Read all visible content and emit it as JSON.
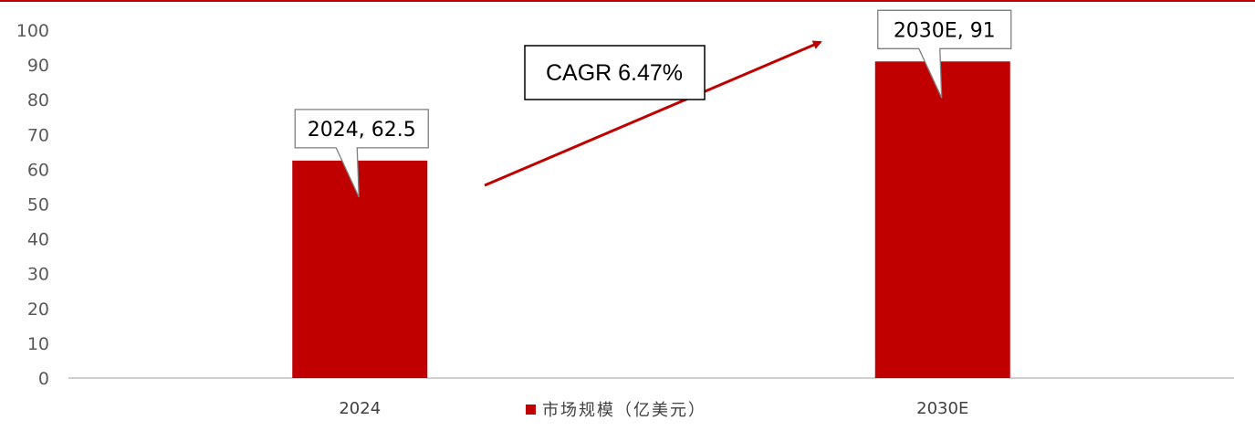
{
  "colors": {
    "bar": "#C00000",
    "top_rule": "#C00000",
    "axis": "#BFBFBF",
    "tick_text": "#595959",
    "callout_border": "#7F7F7F",
    "arrow": "#C00000"
  },
  "chart_data": {
    "type": "bar",
    "categories": [
      "2024",
      "2030E"
    ],
    "series": [
      {
        "name": "市场规模（亿美元）",
        "values": [
          62.5,
          91
        ]
      }
    ],
    "data_labels": [
      "2024, 62.5",
      "2030E, 91"
    ],
    "ylim": [
      0,
      100
    ],
    "yticks": [
      0,
      10,
      20,
      30,
      40,
      50,
      60,
      70,
      80,
      90,
      100
    ],
    "ytick_labels": [
      "0",
      "10",
      "20",
      "30",
      "40",
      "50",
      "60",
      "70",
      "80",
      "90",
      "100"
    ],
    "grid": false,
    "legend": "bottom-center",
    "annotation": "CAGR 6.47%"
  }
}
